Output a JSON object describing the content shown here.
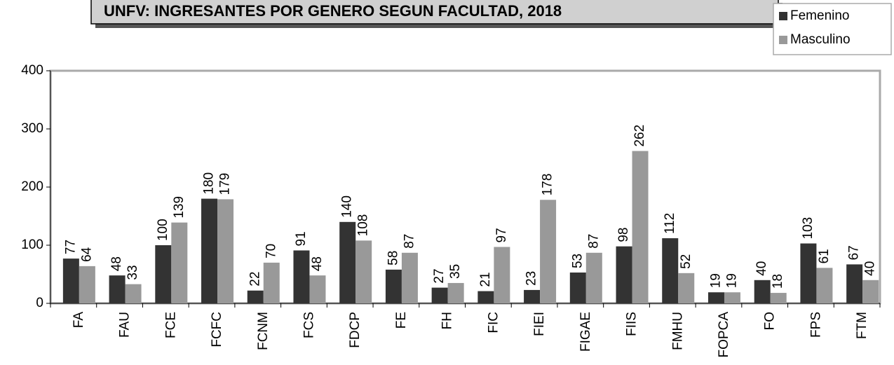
{
  "chart_data": {
    "type": "bar",
    "title": "UNFV: INGRESANTES POR GENERO SEGUN FACULTAD, 2018",
    "categories": [
      "FA",
      "FAU",
      "FCE",
      "FCFC",
      "FCNM",
      "FCS",
      "FDCP",
      "FE",
      "FH",
      "FIC",
      "FIEI",
      "FIGAE",
      "FIIS",
      "FMHU",
      "FOPCA",
      "FO",
      "FPS",
      "FTM"
    ],
    "series": [
      {
        "name": "Femenino",
        "color": "#333333",
        "values": [
          77,
          48,
          100,
          180,
          22,
          91,
          140,
          58,
          27,
          21,
          23,
          53,
          98,
          112,
          19,
          40,
          103,
          67
        ]
      },
      {
        "name": "Masculino",
        "color": "#999999",
        "values": [
          64,
          33,
          139,
          179,
          70,
          48,
          108,
          87,
          35,
          97,
          178,
          87,
          262,
          52,
          19,
          18,
          61,
          40
        ]
      }
    ],
    "ylim": [
      0,
      400
    ],
    "yticks": [
      0,
      100,
      200,
      300,
      400
    ],
    "legend": "upper right"
  }
}
